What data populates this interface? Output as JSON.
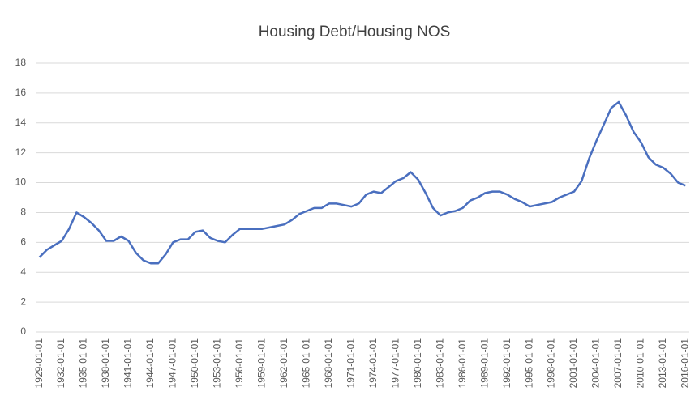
{
  "chart_data": {
    "type": "line",
    "title": "Housing Debt/Housing NOS",
    "categories": [
      "1929-01-01",
      null,
      null,
      "1932-01-01",
      null,
      null,
      "1935-01-01",
      null,
      null,
      "1938-01-01",
      null,
      null,
      "1941-01-01",
      null,
      null,
      "1944-01-01",
      null,
      null,
      "1947-01-01",
      null,
      null,
      "1950-01-01",
      null,
      null,
      "1953-01-01",
      null,
      null,
      "1956-01-01",
      null,
      null,
      "1959-01-01",
      null,
      null,
      "1962-01-01",
      null,
      null,
      "1965-01-01",
      null,
      null,
      "1968-01-01",
      null,
      null,
      "1971-01-01",
      null,
      null,
      "1974-01-01",
      null,
      null,
      "1977-01-01",
      null,
      null,
      "1980-01-01",
      null,
      null,
      "1983-01-01",
      null,
      null,
      "1986-01-01",
      null,
      null,
      "1989-01-01",
      null,
      null,
      "1992-01-01",
      null,
      null,
      "1995-01-01",
      null,
      null,
      "1998-01-01",
      null,
      null,
      "2001-01-01",
      null,
      null,
      "2004-01-01",
      null,
      null,
      "2007-01-01",
      null,
      null,
      "2010-01-01",
      null,
      null,
      "2013-01-01",
      null,
      null,
      "2016-01-01"
    ],
    "series": [
      {
        "color": "#4a6fbf",
        "values": [
          5.0,
          5.5,
          5.8,
          6.1,
          6.9,
          8.0,
          7.7,
          7.3,
          6.8,
          6.1,
          6.1,
          6.4,
          6.1,
          5.3,
          4.8,
          4.6,
          4.6,
          5.2,
          6.0,
          6.2,
          6.2,
          6.7,
          6.8,
          6.3,
          6.1,
          6.0,
          6.5,
          6.9,
          6.9,
          6.9,
          6.9,
          7.0,
          7.1,
          7.2,
          7.5,
          7.9,
          8.1,
          8.3,
          8.3,
          8.6,
          8.6,
          8.5,
          8.4,
          8.6,
          9.2,
          9.4,
          9.3,
          9.7,
          10.1,
          10.3,
          10.7,
          10.2,
          9.3,
          8.3,
          7.8,
          8.0,
          8.1,
          8.3,
          8.8,
          9.0,
          9.3,
          9.4,
          9.4,
          9.2,
          8.9,
          8.7,
          8.4,
          8.5,
          8.6,
          8.7,
          9.0,
          9.2,
          9.4,
          10.1,
          11.6,
          12.8,
          13.9,
          15.0,
          15.4,
          14.5,
          13.4,
          12.7,
          11.7,
          11.2,
          11.0,
          10.6,
          10.0,
          9.8
        ]
      }
    ],
    "ylim": [
      0,
      18
    ],
    "yticks": [
      0,
      2,
      4,
      6,
      8,
      10,
      12,
      14,
      16,
      18
    ],
    "grid": true
  }
}
